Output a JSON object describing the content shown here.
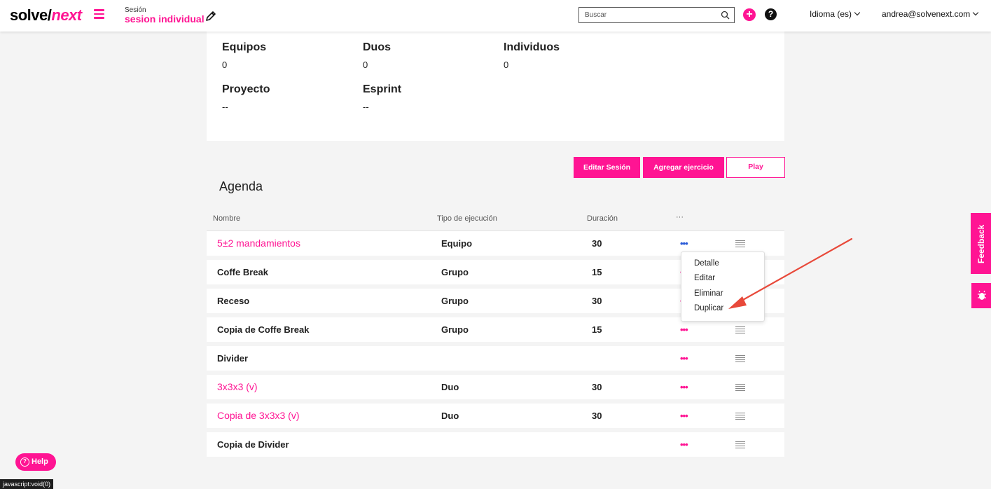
{
  "header": {
    "logo_main": "solve/",
    "logo_accent": "next",
    "session_caption": "Sesión",
    "session_name": "sesion individual",
    "search_placeholder": "Buscar",
    "language": "Idioma (es)",
    "user_email": "andrea@solvenext.com",
    "plus_symbol": "+",
    "help_symbol": "?"
  },
  "summary": {
    "stats": [
      {
        "label": "Equipos",
        "value": "0"
      },
      {
        "label": "Duos",
        "value": "0"
      },
      {
        "label": "Individuos",
        "value": "0"
      },
      {
        "label": "Proyecto",
        "value": "--"
      },
      {
        "label": "Esprint",
        "value": "--"
      }
    ]
  },
  "actions": {
    "edit_session": "Editar Sesión",
    "add_exercise": "Agregar ejercicio",
    "play": "Play"
  },
  "agenda": {
    "title": "Agenda",
    "columns": [
      "Nombre",
      "Tipo de ejecución",
      "Duración",
      "···"
    ],
    "rows": [
      {
        "name": "5±2 mandamientos",
        "type": "Equipo",
        "duration": "30",
        "highlight": true
      },
      {
        "name": "Coffe Break",
        "type": "Grupo",
        "duration": "15",
        "highlight": false
      },
      {
        "name": "Receso",
        "type": "Grupo",
        "duration": "30",
        "highlight": false
      },
      {
        "name": "Copia de Coffe Break",
        "type": "Grupo",
        "duration": "15",
        "highlight": false
      },
      {
        "name": "Divider",
        "type": "",
        "duration": "",
        "highlight": false
      },
      {
        "name": "3x3x3 (v)",
        "type": "Duo",
        "duration": "30",
        "highlight": true
      },
      {
        "name": "Copia de 3x3x3 (v)",
        "type": "Duo",
        "duration": "30",
        "highlight": true
      },
      {
        "name": "Copia de Divider",
        "type": "",
        "duration": "",
        "highlight": false
      }
    ],
    "row_menu_symbol": "•••"
  },
  "row_menu": {
    "items": [
      "Detalle",
      "Editar",
      "Eliminar",
      "Duplicar"
    ]
  },
  "side_tabs": {
    "feedback": "Feedback"
  },
  "help": {
    "label": "Help",
    "icon_symbol": "?"
  },
  "status_bar": "javascript:void(0)",
  "colors": {
    "accent": "#ff1493",
    "menu_dots_active": "#2a5bd7",
    "annotation_arrow": "#e8493a"
  }
}
